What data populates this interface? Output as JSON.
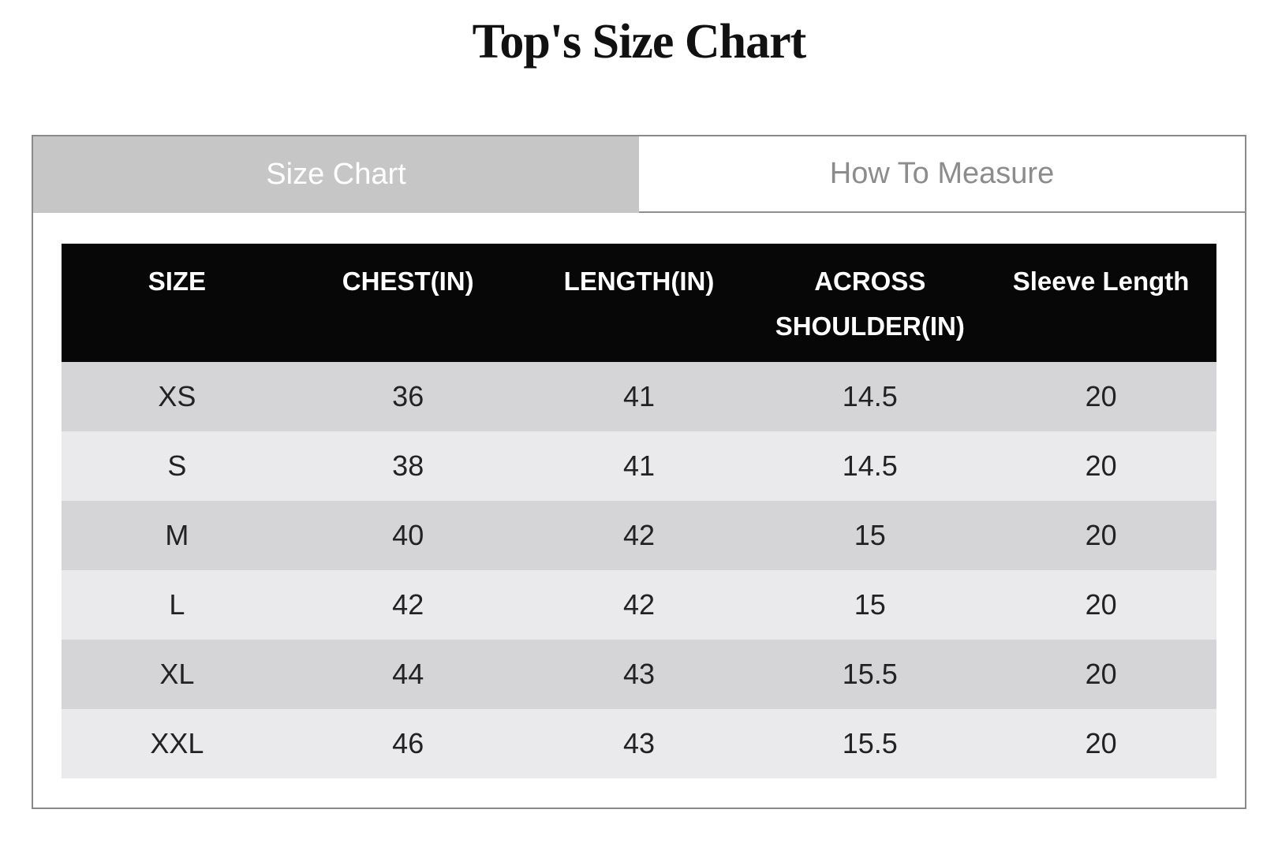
{
  "page": {
    "title": "Top's Size Chart"
  },
  "tabs": [
    {
      "label": "Size Chart",
      "active": true
    },
    {
      "label": "How To Measure",
      "active": false
    }
  ],
  "size_table": {
    "columns": [
      "SIZE",
      "CHEST(IN)",
      "LENGTH(IN)",
      "ACROSS SHOULDER(IN)",
      "Sleeve Length"
    ],
    "rows": [
      [
        "XS",
        "36",
        "41",
        "14.5",
        "20"
      ],
      [
        "S",
        "38",
        "41",
        "14.5",
        "20"
      ],
      [
        "M",
        "40",
        "42",
        "15",
        "20"
      ],
      [
        "L",
        "42",
        "42",
        "15",
        "20"
      ],
      [
        "XL",
        "44",
        "43",
        "15.5",
        "20"
      ],
      [
        "XXL",
        "46",
        "43",
        "15.5",
        "20"
      ]
    ]
  },
  "colors": {
    "border": "#8a8a8a",
    "tab_active_bg": "#c6c6c6",
    "tab_active_text": "#ffffff",
    "tab_inactive_bg": "#ffffff",
    "tab_inactive_text": "#8c8c8c",
    "tab_bottom_border": "#8f8f8f",
    "head_bg": "#070707",
    "head_text": "#ffffff",
    "row_dark": "#d5d5d7",
    "row_light": "#eaeaec",
    "cell_text": "#222222",
    "title_text": "#111111"
  }
}
